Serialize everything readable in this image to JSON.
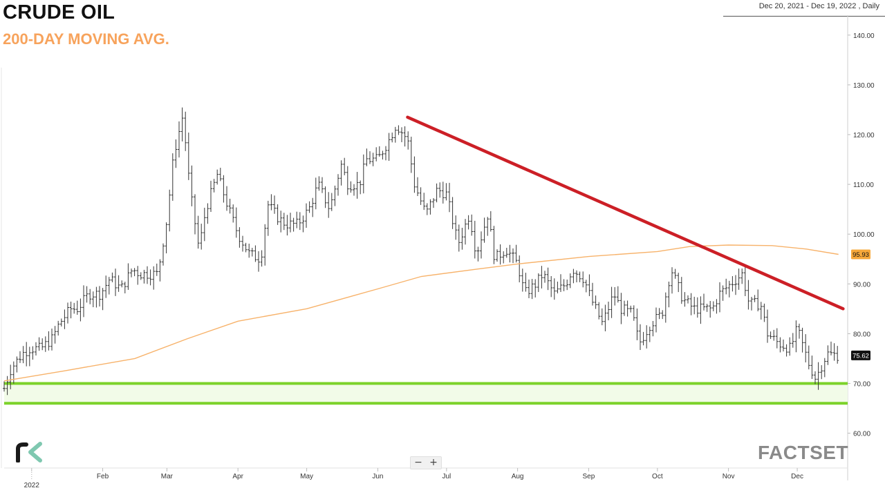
{
  "header": {
    "title": "CRUDE OIL",
    "subtitle": "200-DAY MOVING AVG.",
    "date_range": "Dec 20, 2021 - Dec 19, 2022 , Daily"
  },
  "controls": {
    "zoom_out": "−",
    "zoom_in": "+"
  },
  "branding": {
    "factset": "FACTSET"
  },
  "colors": {
    "price_bars": "#333333",
    "moving_average": "#f7b26a",
    "trendline": "#cc1f26",
    "support": "#7cd22a",
    "support_fill": "#f2fbe8",
    "last_price_badge": "#111111",
    "ma_badge": "#f7a83a"
  },
  "chart_data": {
    "type": "ohlc",
    "title": "CRUDE OIL",
    "subtitle": "200-DAY MOVING AVG.",
    "date_range": "Dec 20, 2021 - Dec 19, 2022 , Daily",
    "ylim": [
      53,
      144
    ],
    "y_ticks": [
      "60.00",
      "70.00",
      "80.00",
      "90.00",
      "100.00",
      "110.00",
      "120.00",
      "130.00",
      "140.00"
    ],
    "x_ticks": [
      {
        "date": "2022-01-01",
        "label": "2022"
      },
      {
        "date": "2022-02-01",
        "label": "Feb"
      },
      {
        "date": "2022-03-01",
        "label": "Mar"
      },
      {
        "date": "2022-04-01",
        "label": "Apr"
      },
      {
        "date": "2022-05-01",
        "label": "May"
      },
      {
        "date": "2022-06-01",
        "label": "Jun"
      },
      {
        "date": "2022-07-01",
        "label": "Jul"
      },
      {
        "date": "2022-08-01",
        "label": "Aug"
      },
      {
        "date": "2022-09-01",
        "label": "Sep"
      },
      {
        "date": "2022-10-01",
        "label": "Oct"
      },
      {
        "date": "2022-11-01",
        "label": "Nov"
      },
      {
        "date": "2022-12-01",
        "label": "Dec"
      }
    ],
    "series": [
      {
        "name": "Crude Oil",
        "kind": "price",
        "points": [
          [
            "2021-12-20",
            69
          ],
          [
            "2021-12-23",
            73
          ],
          [
            "2021-12-28",
            76
          ],
          [
            "2021-12-31",
            77
          ],
          [
            "2022-01-05",
            77
          ],
          [
            "2022-01-10",
            79
          ],
          [
            "2022-01-13",
            82
          ],
          [
            "2022-01-18",
            85
          ],
          [
            "2022-01-21",
            85
          ],
          [
            "2022-01-26",
            88
          ],
          [
            "2022-01-31",
            88
          ],
          [
            "2022-02-04",
            91
          ],
          [
            "2022-02-09",
            89
          ],
          [
            "2022-02-14",
            93
          ],
          [
            "2022-02-17",
            92
          ],
          [
            "2022-02-22",
            92
          ],
          [
            "2022-02-25",
            92
          ],
          [
            "2022-03-01",
            103
          ],
          [
            "2022-03-04",
            116
          ],
          [
            "2022-03-08",
            124
          ],
          [
            "2022-03-11",
            109
          ],
          [
            "2022-03-15",
            97
          ],
          [
            "2022-03-18",
            105
          ],
          [
            "2022-03-23",
            112
          ],
          [
            "2022-03-28",
            105
          ],
          [
            "2022-04-01",
            100
          ],
          [
            "2022-04-06",
            96
          ],
          [
            "2022-04-11",
            95
          ],
          [
            "2022-04-14",
            106
          ],
          [
            "2022-04-19",
            103
          ],
          [
            "2022-04-22",
            102
          ],
          [
            "2022-04-27",
            102
          ],
          [
            "2022-05-02",
            105
          ],
          [
            "2022-05-06",
            110
          ],
          [
            "2022-05-11",
            105
          ],
          [
            "2022-05-16",
            114
          ],
          [
            "2022-05-19",
            110
          ],
          [
            "2022-05-24",
            110
          ],
          [
            "2022-05-27",
            115
          ],
          [
            "2022-06-01",
            115
          ],
          [
            "2022-06-06",
            119
          ],
          [
            "2022-06-09",
            122
          ],
          [
            "2022-06-14",
            119
          ],
          [
            "2022-06-17",
            110
          ],
          [
            "2022-06-22",
            104
          ],
          [
            "2022-06-27",
            109
          ],
          [
            "2022-07-01",
            108
          ],
          [
            "2022-07-06",
            98
          ],
          [
            "2022-07-11",
            104
          ],
          [
            "2022-07-14",
            96
          ],
          [
            "2022-07-19",
            104
          ],
          [
            "2022-07-22",
            95
          ],
          [
            "2022-07-27",
            97
          ],
          [
            "2022-08-01",
            94
          ],
          [
            "2022-08-04",
            88
          ],
          [
            "2022-08-09",
            90
          ],
          [
            "2022-08-12",
            92
          ],
          [
            "2022-08-17",
            88
          ],
          [
            "2022-08-22",
            90
          ],
          [
            "2022-08-25",
            93
          ],
          [
            "2022-08-30",
            91
          ],
          [
            "2022-09-02",
            87
          ],
          [
            "2022-09-07",
            82
          ],
          [
            "2022-09-12",
            88
          ],
          [
            "2022-09-15",
            85
          ],
          [
            "2022-09-20",
            84
          ],
          [
            "2022-09-23",
            78
          ],
          [
            "2022-09-28",
            82
          ],
          [
            "2022-10-03",
            84
          ],
          [
            "2022-10-07",
            93
          ],
          [
            "2022-10-12",
            87
          ],
          [
            "2022-10-17",
            85
          ],
          [
            "2022-10-20",
            85
          ],
          [
            "2022-10-25",
            85
          ],
          [
            "2022-10-28",
            88
          ],
          [
            "2022-11-02",
            90
          ],
          [
            "2022-11-07",
            92
          ],
          [
            "2022-11-10",
            86
          ],
          [
            "2022-11-15",
            86
          ],
          [
            "2022-11-18",
            80
          ],
          [
            "2022-11-23",
            78
          ],
          [
            "2022-11-28",
            77
          ],
          [
            "2022-12-01",
            81
          ],
          [
            "2022-12-06",
            74
          ],
          [
            "2022-12-09",
            71
          ],
          [
            "2022-12-14",
            76
          ],
          [
            "2022-12-19",
            75.62
          ]
        ]
      },
      {
        "name": "200-DAY MOVING AVG.",
        "kind": "moving_average",
        "points": [
          [
            "2021-12-20",
            70.5
          ],
          [
            "2022-01-15",
            72.5
          ],
          [
            "2022-02-15",
            75
          ],
          [
            "2022-03-10",
            79
          ],
          [
            "2022-04-01",
            82.5
          ],
          [
            "2022-05-01",
            85
          ],
          [
            "2022-06-01",
            89
          ],
          [
            "2022-06-20",
            91.5
          ],
          [
            "2022-07-15",
            93
          ],
          [
            "2022-08-01",
            94
          ],
          [
            "2022-09-01",
            95.5
          ],
          [
            "2022-10-01",
            96.5
          ],
          [
            "2022-10-15",
            97.5
          ],
          [
            "2022-11-01",
            97.8
          ],
          [
            "2022-11-20",
            97.7
          ],
          [
            "2022-12-05",
            97
          ],
          [
            "2022-12-19",
            95.93
          ]
        ]
      }
    ],
    "trendline": {
      "from": [
        "2022-06-14",
        123.5
      ],
      "to": [
        "2022-12-21",
        85
      ]
    },
    "support_zone": {
      "low": 66,
      "high": 70
    },
    "last_price": "75.62",
    "ma_last": "95.93",
    "grid": false,
    "legend": "none"
  }
}
